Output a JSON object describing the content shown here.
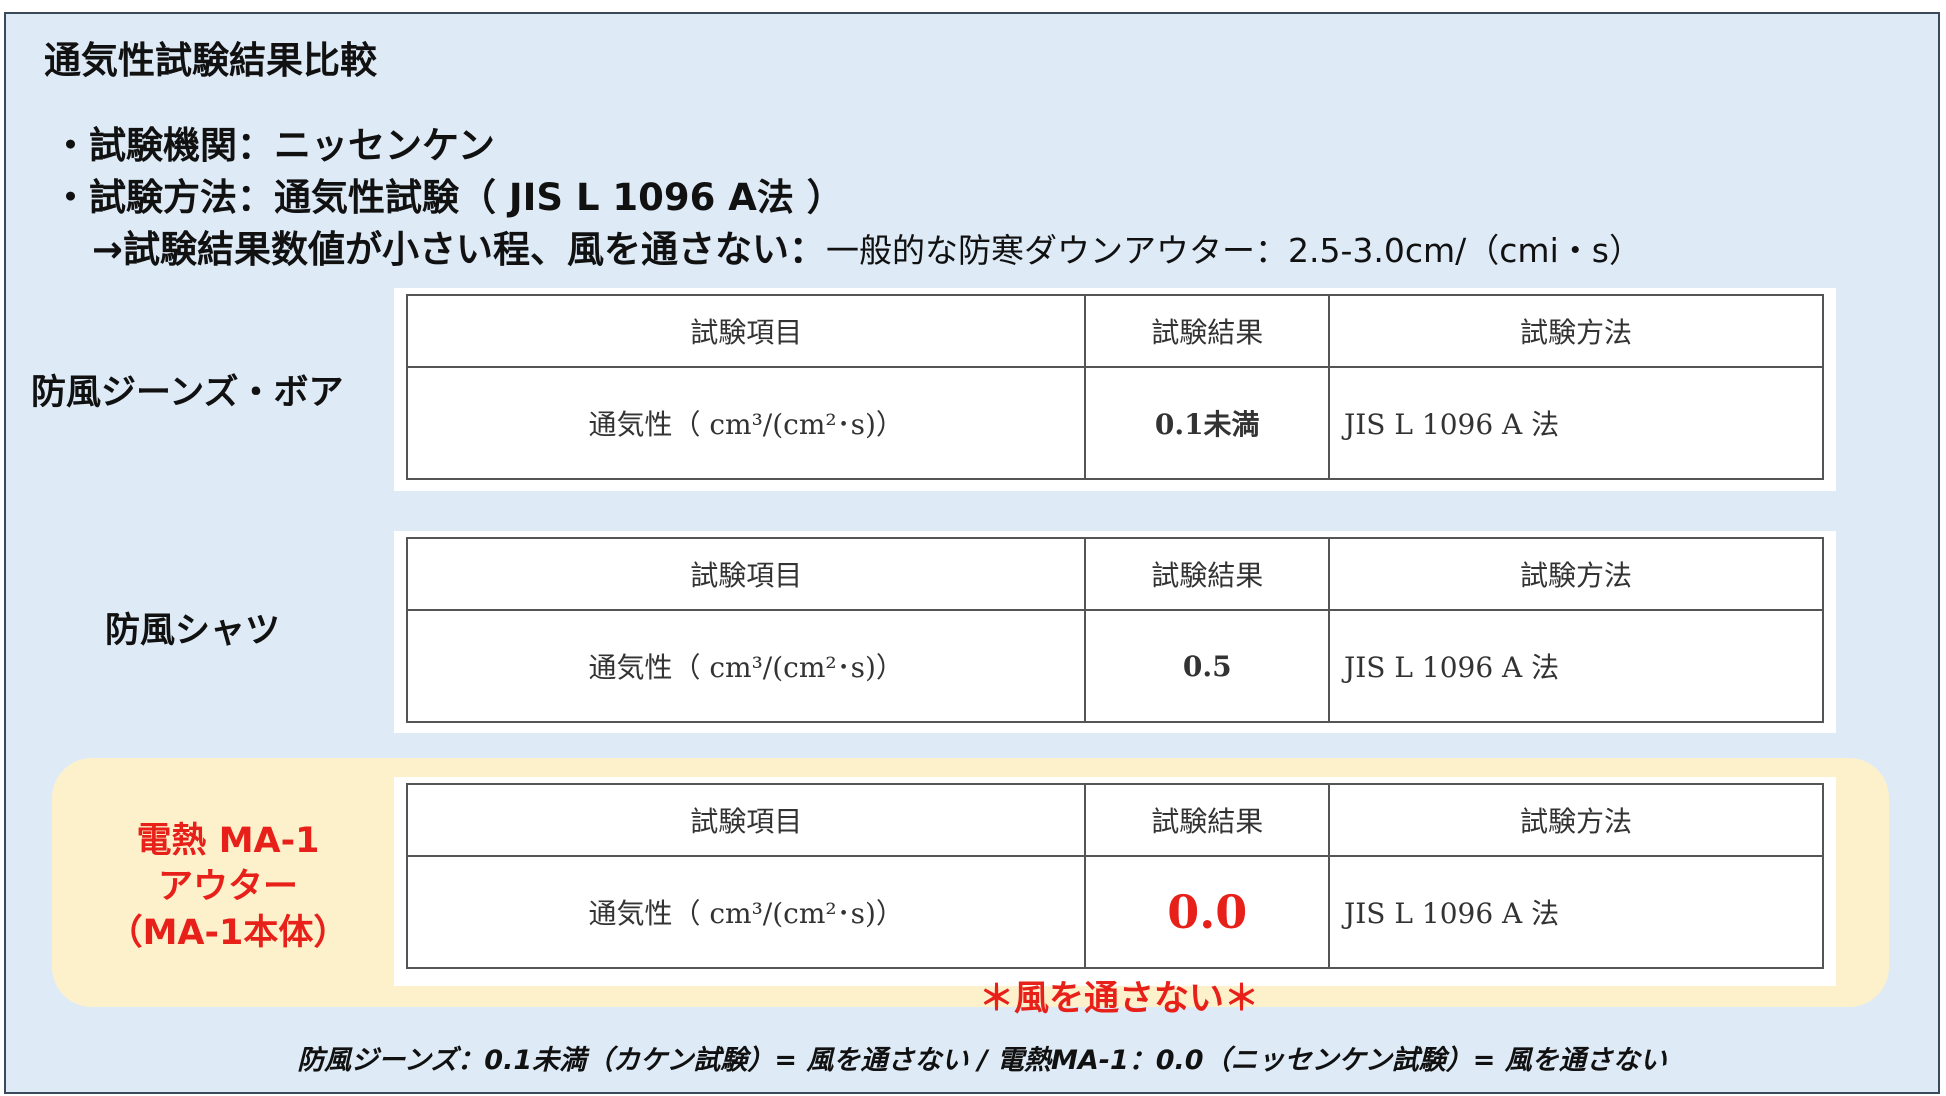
{
  "title": "通気性試験結果比較",
  "bullets": {
    "line1": "・試験機関：ニッセンケン",
    "line2": "・試験方法：通気性試験（ JIS L 1096 A法 ）",
    "line3_bold": "→試験結果数値が小さい程、風を通さない：",
    "line3_normal": "一般的な防寒ダウンアウター：2.5-3.0cm/（cmi・s）"
  },
  "table_headers": [
    "試験項目",
    "試験結果",
    "試験方法"
  ],
  "products": [
    {
      "label": "防風ジーンズ・ボア",
      "item": "通気性（ cm³/(cm²･s)）",
      "result": "0.1未満",
      "method": "JIS L 1096 A 法"
    },
    {
      "label": "防風シャツ",
      "item": "通気性（ cm³/(cm²･s)）",
      "result": "0.5",
      "method": "JIS L 1096 A 法"
    },
    {
      "label_lines": [
        "電熱 MA-1",
        "アウター",
        "（MA-1本体）"
      ],
      "item": "通気性（ cm³/(cm²･s)）",
      "result": "0.0",
      "method": "JIS L 1096 A 法"
    }
  ],
  "windproof_note": "＊風を通さない＊",
  "footer": "防風ジーンズ：0.1未満（カケン試験）= 風を通さない / 電熱MA-1：0.0（ニッセンケン試験）= 風を通さない",
  "colors": {
    "background": "#deebf7",
    "highlight": "#fdf1cc",
    "accent_red": "#e8201a"
  }
}
